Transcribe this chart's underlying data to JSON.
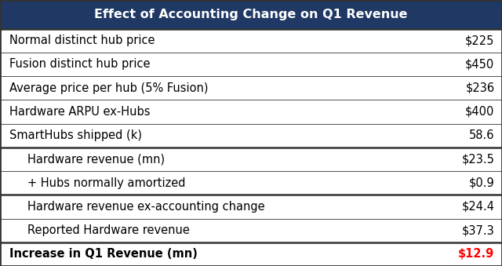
{
  "title": "Effect of Accounting Change on Q1 Revenue",
  "title_bg_color": "#1F3864",
  "title_text_color": "#FFFFFF",
  "header_fontsize": 11.5,
  "rows": [
    {
      "label": "Normal distinct hub price",
      "value": "$225",
      "indent": false,
      "bold": false,
      "separator_below": false,
      "value_color": "#000000"
    },
    {
      "label": "Fusion distinct hub price",
      "value": "$450",
      "indent": false,
      "bold": false,
      "separator_below": false,
      "value_color": "#000000"
    },
    {
      "label": "Average price per hub (5% Fusion)",
      "value": "$236",
      "indent": false,
      "bold": false,
      "separator_below": false,
      "value_color": "#000000"
    },
    {
      "label": "Hardware ARPU ex-Hubs",
      "value": "$400",
      "indent": false,
      "bold": false,
      "separator_below": false,
      "value_color": "#000000"
    },
    {
      "label": "SmartHubs shipped (k)",
      "value": "58.6",
      "indent": false,
      "bold": false,
      "separator_below": true,
      "value_color": "#000000"
    },
    {
      "label": "Hardware revenue (mn)",
      "value": "$23.5",
      "indent": true,
      "bold": false,
      "separator_below": false,
      "value_color": "#000000"
    },
    {
      "label": "+ Hubs normally amortized",
      "value": "$0.9",
      "indent": true,
      "bold": false,
      "separator_below": true,
      "value_color": "#000000"
    },
    {
      "label": "Hardware revenue ex-accounting change",
      "value": "$24.4",
      "indent": true,
      "bold": false,
      "separator_below": false,
      "value_color": "#000000"
    },
    {
      "label": "Reported Hardware revenue",
      "value": "$37.3",
      "indent": true,
      "bold": false,
      "separator_below": true,
      "value_color": "#000000"
    },
    {
      "label": "Increase in Q1 Revenue (mn)",
      "value": "$12.9",
      "indent": false,
      "bold": true,
      "separator_below": false,
      "value_color": "#FF0000"
    }
  ],
  "separator_color": "#333333",
  "thick_sep_color": "#333333",
  "border_color": "#333333",
  "font_size": 10.5,
  "bold_font_size": 10.5,
  "fig_width": 6.4,
  "fig_height": 3.39,
  "dpi": 100
}
